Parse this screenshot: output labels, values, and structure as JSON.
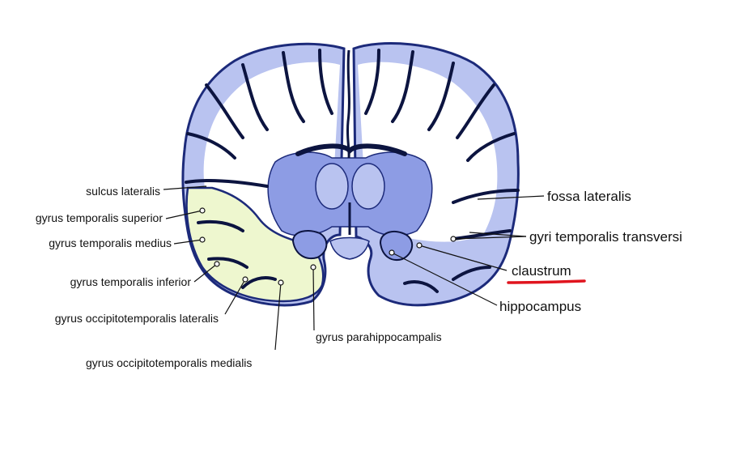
{
  "labels_left": {
    "sulcus_lateralis": "sulcus lateralis",
    "gyrus_temporalis_superior": "gyrus temporalis superior",
    "gyrus_temporalis_medius": "gyrus temporalis medius",
    "gyrus_temporalis_inferior": "gyrus temporalis inferior",
    "gyrus_occipitotemporalis_lateralis": "gyrus occipitotemporalis lateralis",
    "gyrus_occipitotemporalis_medialis": "gyrus occipitotemporalis medialis",
    "gyrus_parahippocampalis": "gyrus parahippocampalis"
  },
  "labels_right": {
    "fossa_lateralis": "fossa lateralis",
    "gyri_temporalis_transversi": "gyri temporalis transversi",
    "claustrum": "claustrum",
    "hippocampus": "hippocampus"
  },
  "colors": {
    "cortex_blue": "#b9c3f0",
    "cortex_outline": "#1c2a7a",
    "sulcus_dark": "#0c1440",
    "temporal_highlight": "#eef7cf",
    "deep_nuclei": "#8d9ce4",
    "highlight_underline": "#e0141e",
    "leader_line": "#111111"
  },
  "highlighted_label": "claustrum"
}
